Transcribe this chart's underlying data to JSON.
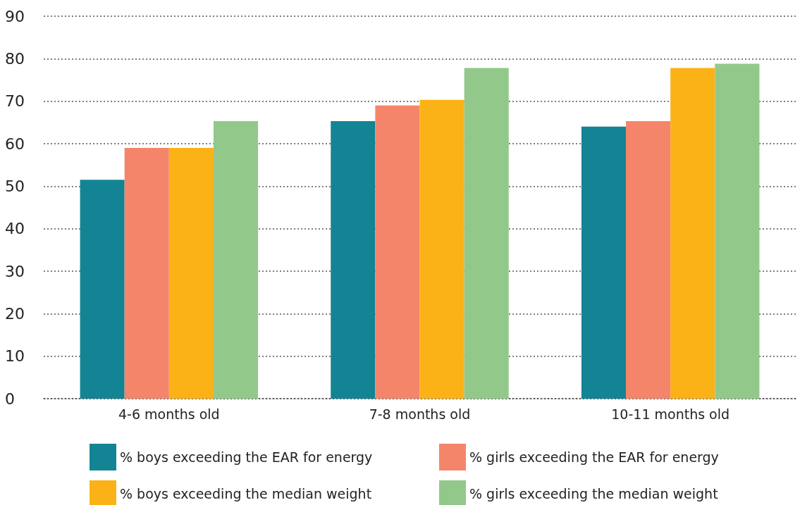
{
  "chart_data": {
    "type": "bar",
    "categories": [
      "4-6 months old",
      "7-8 months old",
      "10-11 months old"
    ],
    "series": [
      {
        "name": "% boys exceeding the EAR for energy",
        "color": "#138494",
        "values": [
          51.5,
          65.3,
          64
        ]
      },
      {
        "name": "% girls exceeding the EAR for energy",
        "color": "#f4856a",
        "values": [
          59,
          69,
          65.3
        ]
      },
      {
        "name": "% boys exceeding the median weight",
        "color": "#fbb216",
        "values": [
          59,
          70.3,
          77.8
        ]
      },
      {
        "name": "% girls exceeding the median weight",
        "color": "#93c88b",
        "values": [
          65.3,
          77.8,
          78.8
        ]
      }
    ],
    "ylim": [
      0,
      90
    ],
    "yticks": [
      0,
      10,
      20,
      30,
      40,
      50,
      60,
      70,
      80,
      90
    ],
    "grid": "y",
    "legend": "bottom"
  }
}
